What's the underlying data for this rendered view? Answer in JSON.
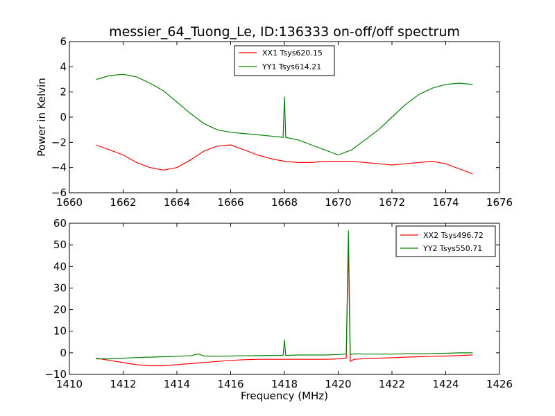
{
  "chart_data": [
    {
      "type": "line",
      "title": "messier_64_Tuong_Le, ID:136333 on-off/off spectrum",
      "xlabel": "",
      "ylabel": "Power in Kelvin",
      "xlim": [
        1660,
        1676
      ],
      "ylim": [
        -6,
        6
      ],
      "xticks": [
        "1660",
        "1662",
        "1664",
        "1666",
        "1668",
        "1670",
        "1672",
        "1674",
        "1676"
      ],
      "yticks": [
        "−6",
        "−4",
        "−2",
        "0",
        "2",
        "4",
        "6"
      ],
      "grid": false,
      "legend_position": "top-center",
      "series": [
        {
          "name": "XX1 Tsys620.15",
          "color": "#ff0000",
          "x": [
            1661.0,
            1661.5,
            1662.0,
            1662.5,
            1663.0,
            1663.5,
            1664.0,
            1664.5,
            1665.0,
            1665.5,
            1666.0,
            1666.5,
            1667.0,
            1667.5,
            1668.0,
            1668.5,
            1669.0,
            1669.5,
            1670.0,
            1670.5,
            1671.0,
            1671.5,
            1672.0,
            1672.5,
            1673.0,
            1673.5,
            1674.0,
            1674.5,
            1675.0
          ],
          "y": [
            -2.2,
            -2.6,
            -3.0,
            -3.6,
            -4.0,
            -4.2,
            -4.0,
            -3.4,
            -2.7,
            -2.3,
            -2.2,
            -2.6,
            -3.0,
            -3.3,
            -3.5,
            -3.6,
            -3.6,
            -3.5,
            -3.5,
            -3.5,
            -3.6,
            -3.7,
            -3.8,
            -3.7,
            -3.6,
            -3.5,
            -3.7,
            -4.1,
            -4.5
          ]
        },
        {
          "name": "YY1 Tsys614.21",
          "color": "#008000",
          "x": [
            1661.0,
            1661.5,
            1662.0,
            1662.5,
            1663.0,
            1663.5,
            1664.0,
            1664.5,
            1665.0,
            1665.5,
            1666.0,
            1666.5,
            1667.0,
            1667.5,
            1667.95,
            1668.0,
            1668.05,
            1668.5,
            1669.0,
            1669.5,
            1670.0,
            1670.5,
            1671.0,
            1671.5,
            1672.0,
            1672.5,
            1673.0,
            1673.5,
            1674.0,
            1674.5,
            1675.0
          ],
          "y": [
            3.0,
            3.3,
            3.4,
            3.2,
            2.7,
            2.1,
            1.2,
            0.3,
            -0.5,
            -1.0,
            -1.2,
            -1.3,
            -1.4,
            -1.5,
            -1.6,
            1.6,
            -1.6,
            -1.8,
            -2.2,
            -2.6,
            -3.0,
            -2.6,
            -1.8,
            -1.0,
            0.0,
            1.0,
            1.8,
            2.3,
            2.6,
            2.7,
            2.6
          ]
        }
      ]
    },
    {
      "type": "line",
      "title": "",
      "xlabel": "Frequency (MHz)",
      "ylabel": "",
      "xlim": [
        1410,
        1426
      ],
      "ylim": [
        -10,
        60
      ],
      "xticks": [
        "1410",
        "1412",
        "1414",
        "1416",
        "1418",
        "1420",
        "1422",
        "1424",
        "1426"
      ],
      "yticks": [
        "−10",
        "0",
        "10",
        "20",
        "30",
        "40",
        "50",
        "60"
      ],
      "grid": false,
      "legend_position": "top-right",
      "series": [
        {
          "name": "XX2 Tsys496.72",
          "color": "#ff0000",
          "x": [
            1411.0,
            1411.5,
            1412.0,
            1412.5,
            1413.0,
            1413.5,
            1414.0,
            1414.5,
            1415.0,
            1415.5,
            1416.0,
            1416.5,
            1417.0,
            1417.5,
            1418.0,
            1418.5,
            1419.0,
            1419.5,
            1420.0,
            1420.3,
            1420.38,
            1420.45,
            1420.6,
            1421.0,
            1421.5,
            1422.0,
            1422.5,
            1423.0,
            1423.5,
            1424.0,
            1424.5,
            1425.0
          ],
          "y": [
            -2.5,
            -3.5,
            -4.5,
            -5.5,
            -6.0,
            -6.0,
            -5.5,
            -5.0,
            -4.5,
            -4.0,
            -3.5,
            -3.2,
            -3.0,
            -3.0,
            -3.0,
            -3.0,
            -3.0,
            -3.0,
            -2.8,
            -2.5,
            50.0,
            -4.0,
            -3.0,
            -2.7,
            -2.5,
            -2.3,
            -2.0,
            -1.8,
            -1.6,
            -1.5,
            -1.3,
            -1.0
          ]
        },
        {
          "name": "YY2 Tsys550.71",
          "color": "#008000",
          "x": [
            1411.0,
            1411.5,
            1412.0,
            1412.5,
            1413.0,
            1413.5,
            1414.0,
            1414.5,
            1414.8,
            1415.0,
            1415.5,
            1416.0,
            1416.5,
            1417.0,
            1417.5,
            1417.95,
            1418.0,
            1418.05,
            1418.5,
            1419.0,
            1419.5,
            1420.0,
            1420.3,
            1420.38,
            1420.45,
            1420.6,
            1421.0,
            1421.5,
            1422.0,
            1422.5,
            1423.0,
            1423.5,
            1424.0,
            1424.5,
            1425.0
          ],
          "y": [
            -2.8,
            -2.8,
            -2.5,
            -2.2,
            -2.0,
            -1.8,
            -1.6,
            -1.4,
            -0.5,
            -1.5,
            -1.6,
            -1.5,
            -1.4,
            -1.3,
            -1.2,
            -1.2,
            6.0,
            -1.2,
            -1.0,
            -1.0,
            -1.0,
            -0.8,
            -0.5,
            56.5,
            -0.8,
            -0.5,
            -0.6,
            -0.6,
            -0.6,
            -0.5,
            -0.5,
            -0.3,
            -0.2,
            0.0,
            0.0
          ]
        }
      ]
    }
  ]
}
